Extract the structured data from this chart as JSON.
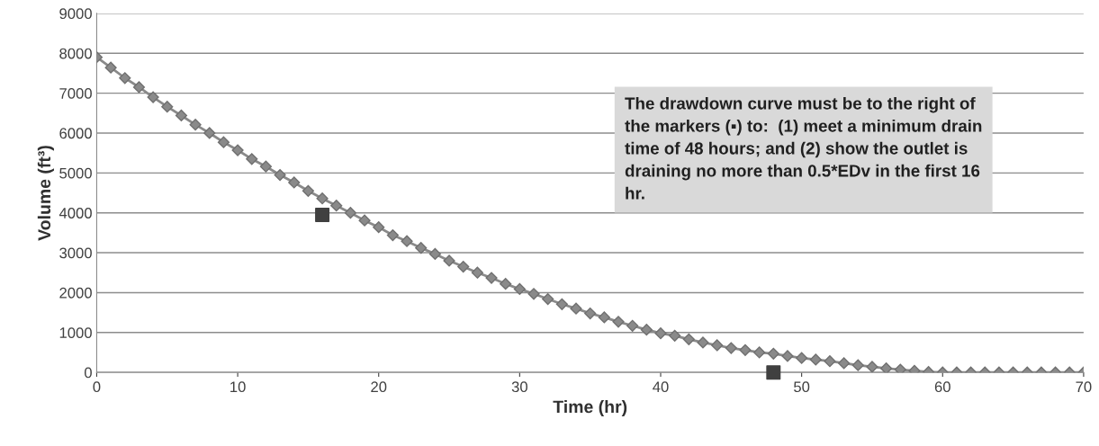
{
  "chart_data": {
    "type": "line",
    "xlabel": "Time (hr)",
    "ylabel": "Volume (ft³)",
    "xlim": [
      0,
      70
    ],
    "xticks": [
      0,
      10,
      20,
      30,
      40,
      50,
      60,
      70
    ],
    "ylim": [
      0,
      9000
    ],
    "yticks": [
      0,
      1000,
      2000,
      3000,
      4000,
      5000,
      6000,
      7000,
      8000,
      9000
    ],
    "grid": "y",
    "legend": false,
    "series": [
      {
        "marker": "diamond",
        "line_style": "solid",
        "color": "#8a8a8a",
        "x": [
          0,
          1,
          2,
          3,
          4,
          5,
          6,
          7,
          8,
          9,
          10,
          11,
          12,
          13,
          14,
          15,
          16,
          17,
          18,
          19,
          20,
          21,
          22,
          23,
          24,
          25,
          26,
          27,
          28,
          29,
          30,
          31,
          32,
          33,
          34,
          35,
          36,
          37,
          38,
          39,
          40,
          41,
          42,
          43,
          44,
          45,
          46,
          47,
          48,
          49,
          50,
          51,
          52,
          53,
          54,
          55,
          56,
          57,
          58,
          59,
          60,
          61,
          62,
          63,
          64,
          65,
          66,
          67,
          68,
          69,
          70
        ],
        "values": [
          7900,
          7640,
          7380,
          7150,
          6900,
          6660,
          6440,
          6210,
          6000,
          5770,
          5570,
          5350,
          5160,
          4950,
          4760,
          4550,
          4360,
          4180,
          4000,
          3810,
          3640,
          3440,
          3290,
          3120,
          2970,
          2800,
          2650,
          2500,
          2370,
          2220,
          2090,
          1970,
          1840,
          1710,
          1600,
          1480,
          1380,
          1270,
          1170,
          1070,
          980,
          920,
          830,
          750,
          680,
          610,
          560,
          500,
          470,
          410,
          360,
          320,
          280,
          230,
          180,
          140,
          100,
          70,
          40,
          10,
          0,
          0,
          0,
          0,
          0,
          0,
          0,
          0,
          0,
          0,
          0
        ]
      },
      {
        "type": "scatter",
        "marker": "square",
        "color": "#404040",
        "x": [
          16,
          48
        ],
        "values": [
          3950,
          0
        ]
      }
    ],
    "annotations": [
      {
        "text": "The drawdown curve must be to the right of the markers (▪) to:  (1) meet a minimum drain time of 48 hours; and (2) show the outlet is draining no more than 0.5*EDv in the first 16 hr."
      }
    ]
  }
}
